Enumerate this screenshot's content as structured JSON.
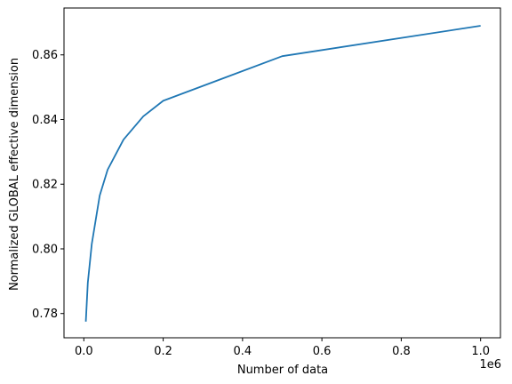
{
  "chart_data": {
    "type": "line",
    "title": "",
    "xlabel": "Number of data",
    "ylabel": "Normalized GLOBAL effective dimension",
    "x_offset_label": "1e6",
    "xlim": [
      -50000,
      1050000
    ],
    "ylim": [
      0.7725,
      0.8745
    ],
    "x_ticks": [
      0,
      200000,
      400000,
      600000,
      800000,
      1000000
    ],
    "x_tick_labels": [
      "0.0",
      "0.2",
      "0.4",
      "0.6",
      "0.8",
      "1.0"
    ],
    "y_ticks": [
      0.78,
      0.8,
      0.82,
      0.84,
      0.86
    ],
    "y_tick_labels": [
      "0.78",
      "0.80",
      "0.82",
      "0.84",
      "0.86"
    ],
    "grid": false,
    "series": [
      {
        "color": "#1f77b4",
        "x": [
          5000,
          10000,
          20000,
          40000,
          60000,
          100000,
          150000,
          200000,
          500000,
          1000000
        ],
        "y": [
          0.7775,
          0.7895,
          0.8015,
          0.8165,
          0.8245,
          0.8338,
          0.841,
          0.8458,
          0.8596,
          0.869
        ]
      }
    ]
  }
}
